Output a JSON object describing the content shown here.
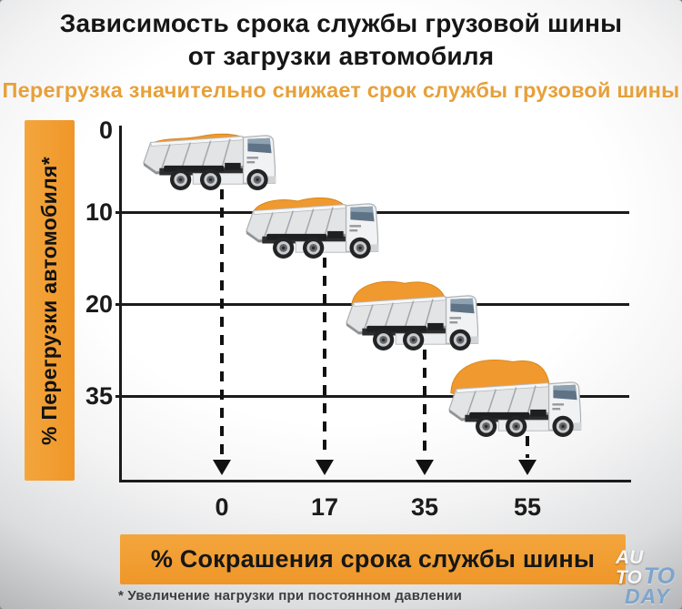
{
  "title": {
    "line1": "Зависимость срока службы грузовой шины",
    "line2": "от загрузки автомобиля"
  },
  "subtitle": "Перегрузка значительно снижает срок службы грузовой шины",
  "chart_data": {
    "type": "scatter",
    "title": "Зависимость срока службы грузовой шины от загрузки автомобиля",
    "xlabel": "% Сокрашения срока службы шины",
    "ylabel": "% Перегрузки автомобиля*",
    "x_tick_labels": [
      "0",
      "17",
      "35",
      "55"
    ],
    "y_tick_labels": [
      "0",
      "10",
      "20",
      "35"
    ],
    "points": [
      {
        "overload_pct": 0,
        "life_reduction_pct": 0
      },
      {
        "overload_pct": 10,
        "life_reduction_pct": 17
      },
      {
        "overload_pct": 20,
        "life_reduction_pct": 35
      },
      {
        "overload_pct": 35,
        "life_reduction_pct": 55
      }
    ],
    "marker": "dump-truck-with-orange-load",
    "grid": "horizontal lines at overload levels, dashed drop lines with arrows to x-axis",
    "legend_position": "none"
  },
  "footnote": "* Увеличение нагрузки при постоянном давлении",
  "watermark": {
    "line1": "AU",
    "line2a": "TO",
    "line2b": "TO",
    "line3": "DAY"
  },
  "colors": {
    "accent_orange": "#F0992F",
    "subtitle_orange": "#E7A03A",
    "axis_black": "#1B1B1B",
    "footnote_gray": "#3D3D3F",
    "watermark_blue": "#7DA4CD",
    "watermark_white": "#F7F7F7"
  }
}
